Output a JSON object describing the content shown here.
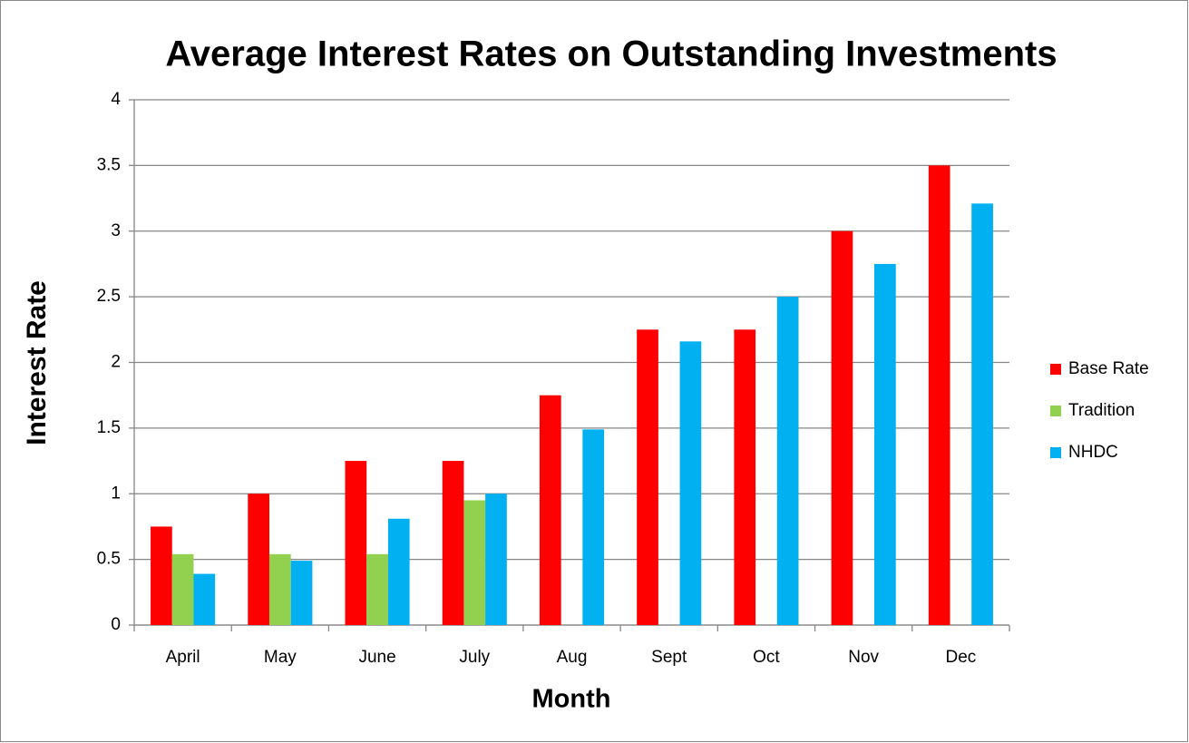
{
  "chart_data": {
    "type": "bar",
    "title": "Average Interest Rates on Outstanding Investments",
    "x_label": "Month",
    "y_label": "Interest Rate",
    "categories": [
      "April",
      "May",
      "June",
      "July",
      "Aug",
      "Sept",
      "Oct",
      "Nov",
      "Dec"
    ],
    "series": [
      {
        "name": "Base Rate",
        "color": "#ff0000",
        "values": [
          0.75,
          1,
          1.25,
          1.25,
          1.75,
          2.25,
          2.25,
          3,
          3.5
        ]
      },
      {
        "name": "Tradition",
        "color": "#92d050",
        "values": [
          0.54,
          0.54,
          0.54,
          0.95,
          null,
          null,
          null,
          null,
          null
        ]
      },
      {
        "name": "NHDC",
        "color": "#00b0f0",
        "values": [
          0.39,
          0.49,
          0.81,
          1.0,
          1.49,
          2.16,
          2.5,
          2.75,
          3.21
        ]
      }
    ],
    "ylim": [
      0,
      4
    ],
    "yticks": [
      0,
      0.5,
      1,
      1.5,
      2,
      2.5,
      3,
      3.5,
      4
    ],
    "grid": true,
    "legend": "right"
  }
}
